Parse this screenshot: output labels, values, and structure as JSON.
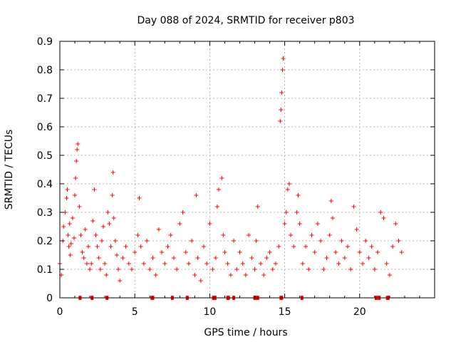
{
  "chart_data": {
    "type": "scatter",
    "title": "Day 088 of 2024, SRMTID for receiver p803",
    "xlabel": "GPS time / hours",
    "ylabel": "SRMTID / TECUs",
    "xlim": [
      0,
      25
    ],
    "ylim": [
      0,
      0.9
    ],
    "xticks": [
      0,
      5,
      10,
      15,
      20
    ],
    "xtick_labels": [
      "0",
      "5",
      "10",
      "15",
      "20"
    ],
    "yticks": [
      0,
      0.1,
      0.2,
      0.3,
      0.4,
      0.5,
      0.6,
      0.7,
      0.8,
      0.9
    ],
    "ytick_labels": [
      "0",
      "0.1",
      "0.2",
      "0.3",
      "0.4",
      "0.5",
      "0.6",
      "0.7",
      "0.8",
      "0.9"
    ],
    "grid": true,
    "legend": "none",
    "series": [
      {
        "name": "SRMTID",
        "marker": "plus",
        "color": "#ff0000",
        "x": [
          0.0,
          0.1,
          0.2,
          0.25,
          0.35,
          0.45,
          0.5,
          0.55,
          0.6,
          0.65,
          0.7,
          0.75,
          0.85,
          0.95,
          1.0,
          1.05,
          1.1,
          1.15,
          1.2,
          1.3,
          1.4,
          1.5,
          1.6,
          1.7,
          1.8,
          1.9,
          2.0,
          2.1,
          2.2,
          2.3,
          2.4,
          2.5,
          2.6,
          2.7,
          2.8,
          2.9,
          3.0,
          3.1,
          3.2,
          3.3,
          3.4,
          3.5,
          3.55,
          3.6,
          3.7,
          3.8,
          3.9,
          4.0,
          4.2,
          4.4,
          4.6,
          4.8,
          5.0,
          5.2,
          5.3,
          5.4,
          5.6,
          5.8,
          6.0,
          6.2,
          6.4,
          6.6,
          6.8,
          7.0,
          7.2,
          7.4,
          7.6,
          7.8,
          8.0,
          8.2,
          8.4,
          8.6,
          8.8,
          9.0,
          9.1,
          9.2,
          9.4,
          9.6,
          9.8,
          10.0,
          10.2,
          10.4,
          10.5,
          10.6,
          10.8,
          10.9,
          11.0,
          11.2,
          11.4,
          11.6,
          11.8,
          12.0,
          12.2,
          12.4,
          12.6,
          12.8,
          13.0,
          13.1,
          13.2,
          13.4,
          13.6,
          13.8,
          14.0,
          14.2,
          14.4,
          14.6,
          14.7,
          14.75,
          14.8,
          14.85,
          14.9,
          15.0,
          15.1,
          15.2,
          15.3,
          15.4,
          15.6,
          15.8,
          15.9,
          16.0,
          16.2,
          16.4,
          16.6,
          16.8,
          17.0,
          17.2,
          17.4,
          17.6,
          17.8,
          18.0,
          18.1,
          18.2,
          18.4,
          18.6,
          18.8,
          19.0,
          19.2,
          19.4,
          19.6,
          19.8,
          20.0,
          20.2,
          20.4,
          20.6,
          20.8,
          21.0,
          21.2,
          21.4,
          21.6,
          21.8,
          22.0,
          22.2,
          22.4,
          22.6,
          22.8
        ],
        "y": [
          0.12,
          0.08,
          0.2,
          0.25,
          0.3,
          0.35,
          0.38,
          0.22,
          0.18,
          0.26,
          0.15,
          0.19,
          0.28,
          0.21,
          0.36,
          0.42,
          0.48,
          0.52,
          0.54,
          0.32,
          0.22,
          0.16,
          0.14,
          0.24,
          0.12,
          0.18,
          0.1,
          0.12,
          0.27,
          0.38,
          0.22,
          0.18,
          0.14,
          0.1,
          0.2,
          0.25,
          0.12,
          0.08,
          0.3,
          0.26,
          0.18,
          0.36,
          0.44,
          0.28,
          0.2,
          0.15,
          0.1,
          0.06,
          0.14,
          0.18,
          0.12,
          0.1,
          0.16,
          0.22,
          0.35,
          0.18,
          0.12,
          0.2,
          0.1,
          0.14,
          0.08,
          0.24,
          0.16,
          0.12,
          0.18,
          0.22,
          0.14,
          0.1,
          0.26,
          0.3,
          0.16,
          0.12,
          0.2,
          0.08,
          0.36,
          0.14,
          0.06,
          0.18,
          0.12,
          0.26,
          0.1,
          0.14,
          0.32,
          0.38,
          0.42,
          0.22,
          0.16,
          0.12,
          0.08,
          0.2,
          0.1,
          0.16,
          0.12,
          0.08,
          0.22,
          0.14,
          0.1,
          0.2,
          0.32,
          0.12,
          0.08,
          0.14,
          0.16,
          0.1,
          0.12,
          0.18,
          0.62,
          0.66,
          0.72,
          0.8,
          0.84,
          0.26,
          0.3,
          0.38,
          0.4,
          0.22,
          0.18,
          0.3,
          0.36,
          0.26,
          0.12,
          0.18,
          0.1,
          0.22,
          0.16,
          0.26,
          0.2,
          0.1,
          0.14,
          0.22,
          0.34,
          0.28,
          0.16,
          0.12,
          0.2,
          0.14,
          0.18,
          0.1,
          0.32,
          0.24,
          0.16,
          0.12,
          0.2,
          0.14,
          0.18,
          0.1,
          0.16,
          0.3,
          0.28,
          0.12,
          0.08,
          0.18,
          0.26,
          0.2,
          0.16
        ]
      },
      {
        "name": "zero",
        "marker": "square",
        "color": "#ff0000",
        "x": [
          1.35,
          2.15,
          3.15,
          6.15,
          6.2,
          7.5,
          8.5,
          10.25,
          10.35,
          11.2,
          11.25,
          11.6,
          13.0,
          13.05,
          13.1,
          13.2,
          14.75,
          14.8,
          16.15,
          21.1,
          21.3,
          21.85,
          21.9
        ],
        "y": [
          0,
          0,
          0,
          0,
          0,
          0,
          0,
          0,
          0,
          0,
          0,
          0,
          0,
          0,
          0,
          0,
          0,
          0,
          0,
          0,
          0,
          0,
          0
        ]
      }
    ]
  }
}
